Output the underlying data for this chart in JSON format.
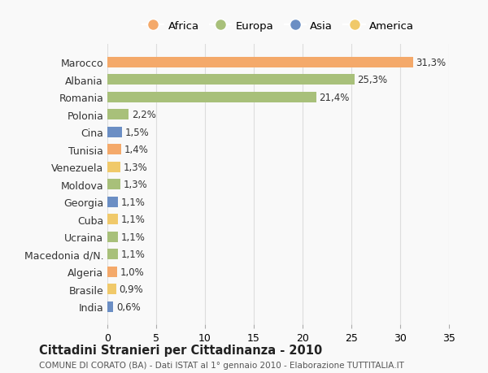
{
  "categories": [
    "Marocco",
    "Albania",
    "Romania",
    "Polonia",
    "Cina",
    "Tunisia",
    "Venezuela",
    "Moldova",
    "Georgia",
    "Cuba",
    "Ucraina",
    "Macedonia d/N.",
    "Algeria",
    "Brasile",
    "India"
  ],
  "values": [
    31.3,
    25.3,
    21.4,
    2.2,
    1.5,
    1.4,
    1.3,
    1.3,
    1.1,
    1.1,
    1.1,
    1.1,
    1.0,
    0.9,
    0.6
  ],
  "labels": [
    "31,3%",
    "25,3%",
    "21,4%",
    "2,2%",
    "1,5%",
    "1,4%",
    "1,3%",
    "1,3%",
    "1,1%",
    "1,1%",
    "1,1%",
    "1,1%",
    "1,0%",
    "0,9%",
    "0,6%"
  ],
  "colors": [
    "#F4A96A",
    "#A8C07A",
    "#A8C07A",
    "#A8C07A",
    "#6B8EC4",
    "#F4A96A",
    "#F0C96A",
    "#A8C07A",
    "#6B8EC4",
    "#F0C96A",
    "#A8C07A",
    "#A8C07A",
    "#F4A96A",
    "#F0C96A",
    "#6B8EC4"
  ],
  "legend_labels": [
    "Africa",
    "Europa",
    "Asia",
    "America"
  ],
  "legend_colors": [
    "#F4A96A",
    "#A8C07A",
    "#6B8EC4",
    "#F0C96A"
  ],
  "title": "Cittadini Stranieri per Cittadinanza - 2010",
  "subtitle": "COMUNE DI CORATO (BA) - Dati ISTAT al 1° gennaio 2010 - Elaborazione TUTTITALIA.IT",
  "xlim": [
    0,
    35
  ],
  "xticks": [
    0,
    5,
    10,
    15,
    20,
    25,
    30,
    35
  ],
  "background_color": "#f9f9f9",
  "grid_color": "#dddddd"
}
